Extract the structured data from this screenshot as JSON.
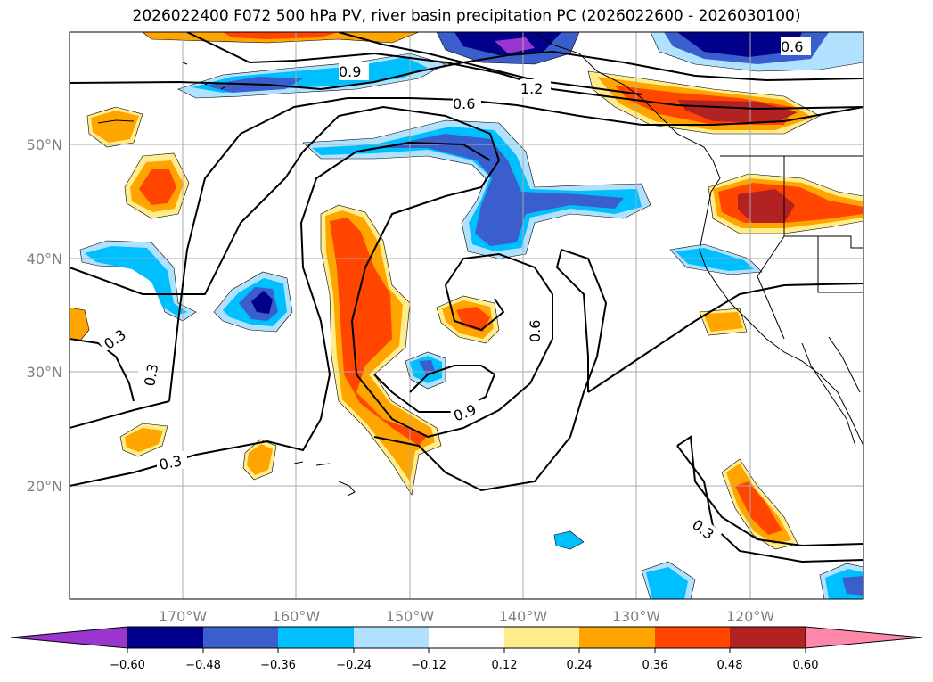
{
  "title": "2026022400 F072 500 hPa PV, river basin precipitation PC (2026022600 - 2026030100)",
  "map": {
    "lat_labels": [
      "50°N",
      "40°N",
      "30°N",
      "20°N"
    ],
    "lon_labels": [
      "170°W",
      "160°W",
      "150°W",
      "140°W",
      "130°W",
      "120°W"
    ],
    "contour_labels": [
      "0.6",
      "1.2",
      "0.9",
      "0.6",
      "0.6",
      "0.3",
      "0.3",
      "0.3",
      "0.9",
      "0.3"
    ]
  },
  "colorbar": {
    "ticks": [
      "−0.60",
      "−0.48",
      "−0.36",
      "−0.24",
      "−0.12",
      "0.12",
      "0.24",
      "0.36",
      "0.48",
      "0.60"
    ],
    "colors": [
      "#9a35d0",
      "#00008b",
      "#3a5fcd",
      "#00bfff",
      "#b0e2ff",
      "#ffffff",
      "#ffec8b",
      "#ffa500",
      "#ff4500",
      "#b22222",
      "#ff88aa"
    ]
  }
}
